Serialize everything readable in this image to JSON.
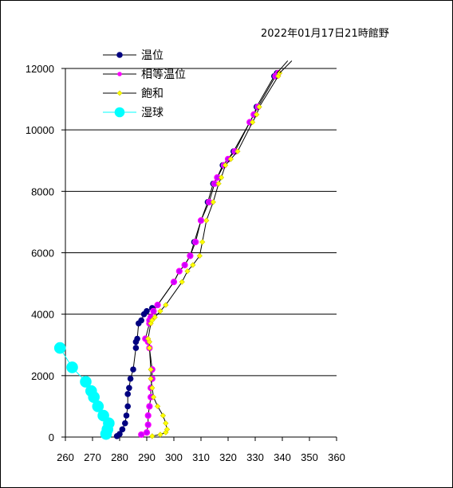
{
  "chart_data": {
    "type": "scatter",
    "title": "2022年01月17日21時館野",
    "xlabel": "",
    "ylabel": "",
    "xlim": [
      260,
      360
    ],
    "ylim": [
      0,
      12000
    ],
    "xticks": [
      260,
      270,
      280,
      290,
      300,
      310,
      320,
      330,
      340,
      350,
      360
    ],
    "yticks": [
      0,
      2000,
      4000,
      6000,
      8000,
      10000,
      12000
    ],
    "grid": "horizontal",
    "legend_position": "top-left",
    "series": [
      {
        "name": "温位",
        "color": "#000080",
        "marker": "circle",
        "points": [
          [
            279,
            30
          ],
          [
            280,
            100
          ],
          [
            281,
            250
          ],
          [
            282,
            450
          ],
          [
            282.5,
            700
          ],
          [
            283,
            1000
          ],
          [
            283,
            1400
          ],
          [
            283.5,
            1600
          ],
          [
            284,
            1900
          ],
          [
            285,
            2200
          ],
          [
            286,
            2900
          ],
          [
            286,
            3100
          ],
          [
            286.5,
            3200
          ],
          [
            287,
            3700
          ],
          [
            288,
            3800
          ],
          [
            289,
            4000
          ],
          [
            290,
            4100
          ],
          [
            292,
            4200
          ],
          [
            294,
            4300
          ],
          [
            300,
            5050
          ],
          [
            302,
            5400
          ],
          [
            304,
            5600
          ],
          [
            306,
            5900
          ],
          [
            307.5,
            6350
          ],
          [
            310,
            7050
          ],
          [
            312.5,
            7650
          ],
          [
            314.5,
            8250
          ],
          [
            316,
            8450
          ],
          [
            318,
            8850
          ],
          [
            320,
            9050
          ],
          [
            322,
            9300
          ],
          [
            328,
            10250
          ],
          [
            329.5,
            10500
          ],
          [
            330.5,
            10750
          ],
          [
            337,
            11750
          ],
          [
            338,
            11850
          ]
        ]
      },
      {
        "name": "相等温位",
        "color": "#ff00ff",
        "marker": "circle",
        "points": [
          [
            288,
            80
          ],
          [
            290,
            150
          ],
          [
            290.5,
            400
          ],
          [
            290.5,
            700
          ],
          [
            291,
            1000
          ],
          [
            291.5,
            1300
          ],
          [
            291.5,
            1600
          ],
          [
            292,
            1900
          ],
          [
            292,
            2200
          ],
          [
            291,
            2900
          ],
          [
            290.5,
            3100
          ],
          [
            289.5,
            3200
          ],
          [
            291,
            3700
          ],
          [
            291,
            3800
          ],
          [
            291.5,
            3900
          ],
          [
            292.5,
            4100
          ],
          [
            294,
            4300
          ],
          [
            300,
            5050
          ],
          [
            302,
            5400
          ],
          [
            304,
            5600
          ],
          [
            306,
            5900
          ],
          [
            308,
            6350
          ],
          [
            310,
            7050
          ],
          [
            313,
            7650
          ],
          [
            315,
            8250
          ],
          [
            316,
            8450
          ],
          [
            318.5,
            8850
          ],
          [
            320,
            9050
          ],
          [
            322.5,
            9300
          ],
          [
            328,
            10250
          ],
          [
            329.5,
            10500
          ],
          [
            331,
            10750
          ],
          [
            337.5,
            11750
          ],
          [
            338.5,
            11850
          ]
        ]
      },
      {
        "name": "飽和",
        "color": "#ffff00",
        "marker": "diamond",
        "points": [
          [
            292,
            30
          ],
          [
            295,
            80
          ],
          [
            297,
            150
          ],
          [
            297.5,
            250
          ],
          [
            297,
            450
          ],
          [
            296,
            700
          ],
          [
            294,
            1000
          ],
          [
            292.5,
            1300
          ],
          [
            292,
            1600
          ],
          [
            291.5,
            1900
          ],
          [
            291.5,
            2200
          ],
          [
            291,
            2900
          ],
          [
            291,
            3100
          ],
          [
            290.5,
            3200
          ],
          [
            291.5,
            3700
          ],
          [
            292,
            3800
          ],
          [
            293,
            3900
          ],
          [
            295,
            4100
          ],
          [
            297,
            4300
          ],
          [
            303,
            5050
          ],
          [
            305,
            5400
          ],
          [
            307,
            5600
          ],
          [
            309.5,
            5900
          ],
          [
            310.5,
            6350
          ],
          [
            312,
            7050
          ],
          [
            314.5,
            7650
          ],
          [
            316.5,
            8250
          ],
          [
            317.5,
            8450
          ],
          [
            319,
            8850
          ],
          [
            321,
            9050
          ],
          [
            323.5,
            9300
          ],
          [
            329,
            10250
          ],
          [
            330.5,
            10500
          ],
          [
            331.5,
            10750
          ],
          [
            338.5,
            11750
          ],
          [
            339,
            11850
          ]
        ]
      },
      {
        "name": "湿球",
        "color": "#00ffff",
        "marker": "circle",
        "points": [
          [
            275,
            100
          ],
          [
            275.5,
            250
          ],
          [
            276,
            450
          ],
          [
            274,
            700
          ],
          [
            272,
            1000
          ],
          [
            270.5,
            1300
          ],
          [
            269.5,
            1500
          ],
          [
            267.5,
            1800
          ],
          [
            262.5,
            2270
          ],
          [
            258,
            2900
          ]
        ]
      }
    ]
  }
}
